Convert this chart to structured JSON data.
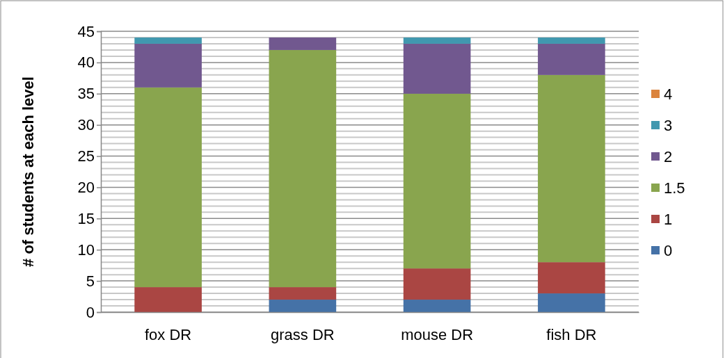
{
  "chart_data": {
    "type": "bar",
    "stacked": true,
    "ylabel": "# of students at each level",
    "categories": [
      "fox DR",
      "grass DR",
      "mouse DR",
      "fish DR"
    ],
    "series": [
      {
        "name": "0",
        "color": "#4572a7",
        "values": [
          0,
          2,
          2,
          3
        ]
      },
      {
        "name": "1",
        "color": "#aa4643",
        "values": [
          4,
          2,
          5,
          5
        ]
      },
      {
        "name": "1.5",
        "color": "#89a54e",
        "values": [
          32,
          38,
          28,
          30
        ]
      },
      {
        "name": "2",
        "color": "#71588f",
        "values": [
          7,
          2,
          8,
          5
        ]
      },
      {
        "name": "3",
        "color": "#4198af",
        "values": [
          1,
          0,
          1,
          1
        ]
      },
      {
        "name": "4",
        "color": "#db843d",
        "values": [
          0,
          0,
          0,
          0
        ]
      }
    ],
    "ylim": [
      0,
      45
    ],
    "yticks": [
      0,
      5,
      10,
      15,
      20,
      25,
      30,
      35,
      40,
      45
    ],
    "grid": "y",
    "legend": "right"
  }
}
